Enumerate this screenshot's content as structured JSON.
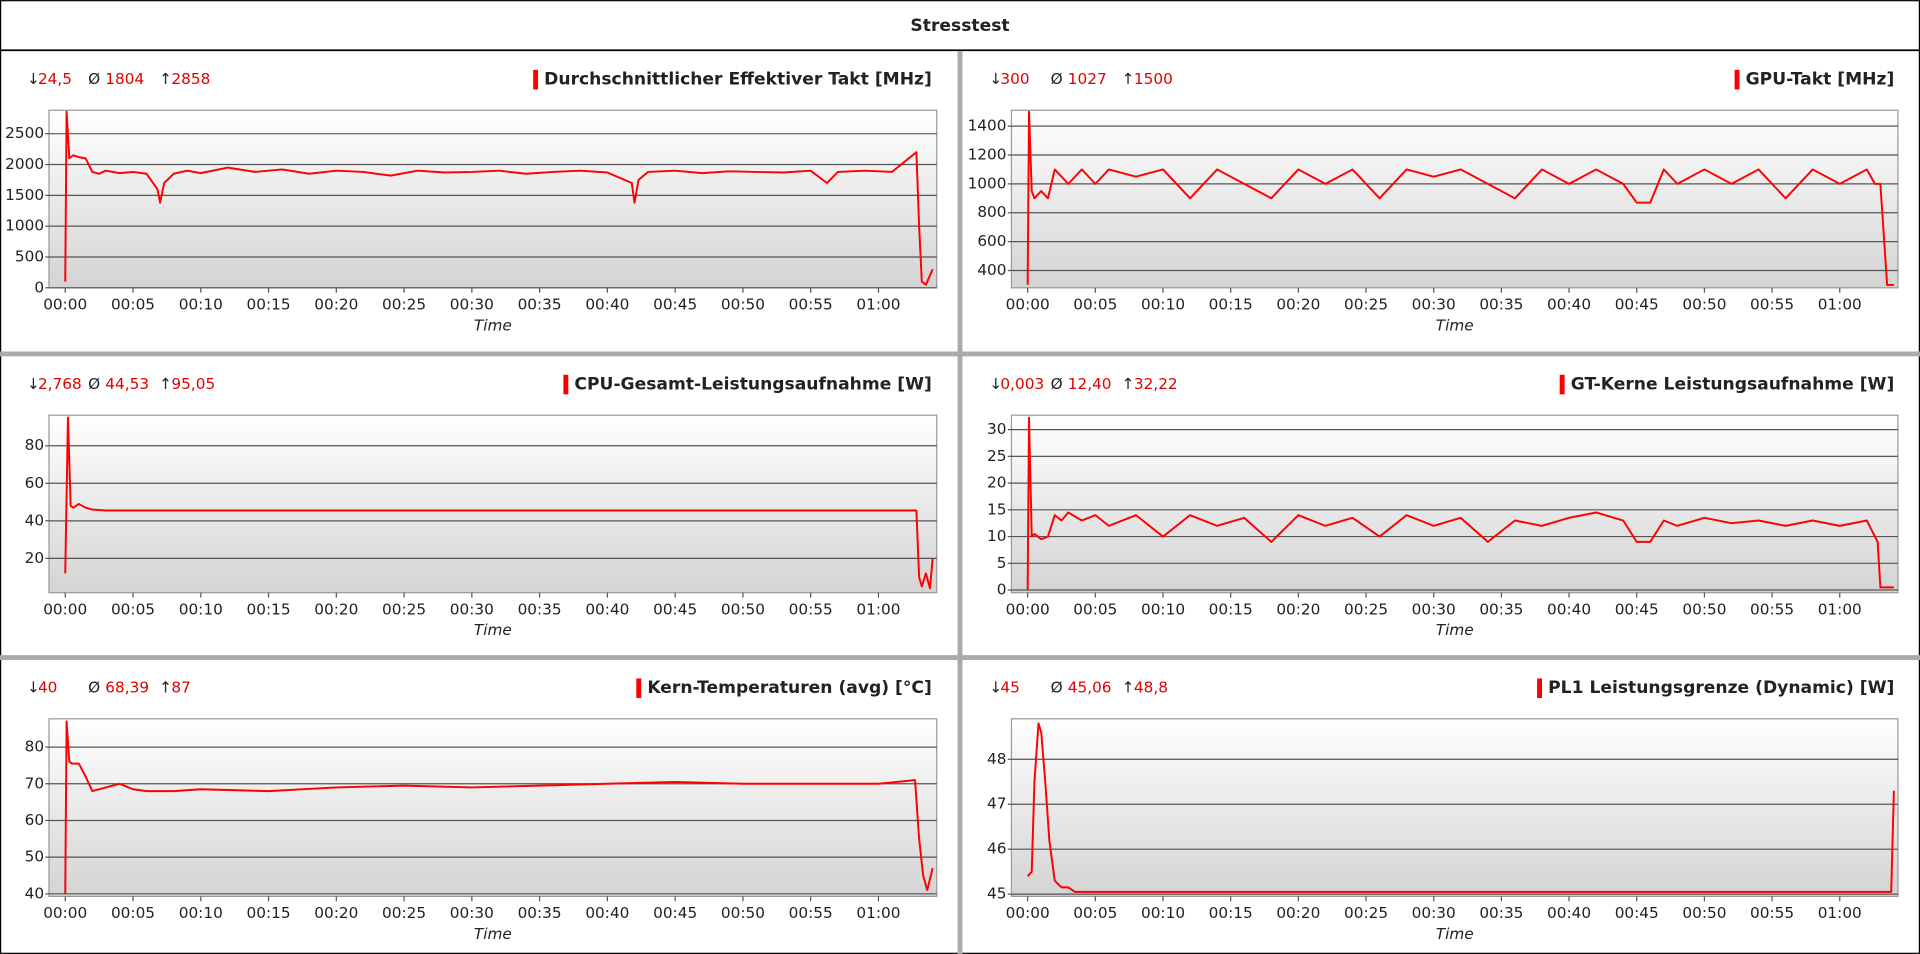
{
  "title": "Stresstest",
  "chart_data": [
    {
      "type": "line",
      "title": "Durchschnittlicher Effektiver Takt [MHz]",
      "xlabel": "Time",
      "stats": [
        {
          "symbol": "↓",
          "value": 24.5,
          "label": "24,5"
        },
        {
          "symbol": "Ø",
          "value": 1804,
          "label": "1804"
        },
        {
          "symbol": "↑",
          "value": 2858,
          "label": "2858"
        }
      ],
      "xlim": [
        -1.2,
        64.3
      ],
      "ylim": [
        0,
        2880
      ],
      "yticks": [
        0,
        500,
        1000,
        1500,
        2000,
        2500
      ],
      "xticks": [
        {
          "value": 0,
          "label": "00:00"
        },
        {
          "value": 5,
          "label": "00:05"
        },
        {
          "value": 10,
          "label": "00:10"
        },
        {
          "value": 15,
          "label": "00:15"
        },
        {
          "value": 20,
          "label": "00:20"
        },
        {
          "value": 25,
          "label": "00:25"
        },
        {
          "value": 30,
          "label": "00:30"
        },
        {
          "value": 35,
          "label": "00:35"
        },
        {
          "value": 40,
          "label": "00:40"
        },
        {
          "value": 45,
          "label": "00:45"
        },
        {
          "value": 50,
          "label": "00:50"
        },
        {
          "value": 55,
          "label": "00:55"
        },
        {
          "value": 60,
          "label": "01:00"
        }
      ],
      "grid": true,
      "x": [
        0,
        0.1,
        0.3,
        0.6,
        1,
        1.5,
        2,
        2.5,
        3,
        4,
        5,
        6,
        6.8,
        7,
        7.3,
        8,
        9,
        10,
        12,
        14,
        16,
        18,
        20,
        22,
        24,
        26,
        28,
        30,
        32,
        34,
        36,
        38,
        40,
        41.8,
        42,
        42.3,
        43,
        45,
        47,
        49,
        51,
        53,
        55,
        56.2,
        57,
        59,
        61,
        62.8,
        63,
        63.2,
        63.5,
        64
      ],
      "series": [
        {
          "color": "#ff0000",
          "values": [
            100,
            2858,
            2100,
            2150,
            2120,
            2100,
            1880,
            1850,
            1900,
            1860,
            1880,
            1850,
            1600,
            1380,
            1700,
            1850,
            1900,
            1860,
            1950,
            1880,
            1920,
            1850,
            1900,
            1880,
            1820,
            1900,
            1870,
            1880,
            1900,
            1850,
            1880,
            1900,
            1870,
            1700,
            1380,
            1750,
            1880,
            1900,
            1860,
            1890,
            1880,
            1870,
            1900,
            1700,
            1880,
            1900,
            1880,
            2200,
            1000,
            100,
            50,
            300
          ]
        }
      ]
    },
    {
      "type": "line",
      "title": "GPU-Takt [MHz]",
      "xlabel": "Time",
      "stats": [
        {
          "symbol": "↓",
          "value": 300,
          "label": "300"
        },
        {
          "symbol": "Ø",
          "value": 1027,
          "label": "1027"
        },
        {
          "symbol": "↑",
          "value": 1500,
          "label": "1500"
        }
      ],
      "xlim": [
        -1.2,
        64.3
      ],
      "ylim": [
        280,
        1510
      ],
      "yticks": [
        400,
        600,
        800,
        1000,
        1200,
        1400
      ],
      "xticks": [
        {
          "value": 0,
          "label": "00:00"
        },
        {
          "value": 5,
          "label": "00:05"
        },
        {
          "value": 10,
          "label": "00:10"
        },
        {
          "value": 15,
          "label": "00:15"
        },
        {
          "value": 20,
          "label": "00:20"
        },
        {
          "value": 25,
          "label": "00:25"
        },
        {
          "value": 30,
          "label": "00:30"
        },
        {
          "value": 35,
          "label": "00:35"
        },
        {
          "value": 40,
          "label": "00:40"
        },
        {
          "value": 45,
          "label": "00:45"
        },
        {
          "value": 50,
          "label": "00:50"
        },
        {
          "value": 55,
          "label": "00:55"
        },
        {
          "value": 60,
          "label": "01:00"
        }
      ],
      "grid": true,
      "x": [
        0,
        0.1,
        0.3,
        0.5,
        1,
        1.5,
        2,
        3,
        4,
        5,
        6,
        8,
        10,
        12,
        14,
        16,
        18,
        20,
        22,
        24,
        26,
        28,
        30,
        32,
        34,
        36,
        38,
        40,
        42,
        44,
        45,
        46,
        47,
        48,
        50,
        52,
        54,
        56,
        58,
        60,
        62,
        62.6,
        63,
        63.5,
        64
      ],
      "series": [
        {
          "color": "#ff0000",
          "values": [
            300,
            1500,
            950,
            900,
            950,
            900,
            1100,
            1000,
            1100,
            1000,
            1100,
            1050,
            1100,
            900,
            1100,
            1000,
            900,
            1100,
            1000,
            1100,
            900,
            1100,
            1050,
            1100,
            1000,
            900,
            1100,
            1000,
            1100,
            1000,
            870,
            870,
            1100,
            1000,
            1100,
            1000,
            1100,
            900,
            1100,
            1000,
            1100,
            1000,
            1000,
            300,
            300
          ]
        }
      ]
    },
    {
      "type": "line",
      "title": "CPU-Gesamt-Leistungsaufnahme [W]",
      "xlabel": "Time",
      "stats": [
        {
          "symbol": "↓",
          "value": 2.768,
          "label": "2,768"
        },
        {
          "symbol": "Ø",
          "value": 44.53,
          "label": "44,53"
        },
        {
          "symbol": "↑",
          "value": 95.05,
          "label": "95,05"
        }
      ],
      "xlim": [
        -1.2,
        64.3
      ],
      "ylim": [
        1.7,
        96.3
      ],
      "yticks": [
        20,
        40,
        60,
        80
      ],
      "xticks": [
        {
          "value": 0,
          "label": "00:00"
        },
        {
          "value": 5,
          "label": "00:05"
        },
        {
          "value": 10,
          "label": "00:10"
        },
        {
          "value": 15,
          "label": "00:15"
        },
        {
          "value": 20,
          "label": "00:20"
        },
        {
          "value": 25,
          "label": "00:25"
        },
        {
          "value": 30,
          "label": "00:30"
        },
        {
          "value": 35,
          "label": "00:35"
        },
        {
          "value": 40,
          "label": "00:40"
        },
        {
          "value": 45,
          "label": "00:45"
        },
        {
          "value": 50,
          "label": "00:50"
        },
        {
          "value": 55,
          "label": "00:55"
        },
        {
          "value": 60,
          "label": "01:00"
        }
      ],
      "grid": true,
      "x": [
        0,
        0.2,
        0.4,
        0.6,
        1,
        1.5,
        2,
        3,
        5,
        10,
        20,
        30,
        40,
        50,
        60,
        62.8,
        63,
        63.2,
        63.5,
        63.8,
        64
      ],
      "series": [
        {
          "color": "#ff0000",
          "values": [
            12,
            95.05,
            48,
            47,
            49,
            47,
            46,
            45.5,
            45.5,
            45.5,
            45.5,
            45.5,
            45.5,
            45.5,
            45.5,
            45.5,
            10,
            5,
            12,
            4,
            20
          ]
        }
      ]
    },
    {
      "type": "line",
      "title": "GT-Kerne Leistungsaufnahme [W]",
      "xlabel": "Time",
      "stats": [
        {
          "symbol": "↓",
          "value": 0.003,
          "label": "0,003"
        },
        {
          "symbol": "Ø",
          "value": 12.4,
          "label": "12,40"
        },
        {
          "symbol": "↑",
          "value": 32.22,
          "label": "32,22"
        }
      ],
      "xlim": [
        -1.2,
        64.3
      ],
      "ylim": [
        -0.5,
        32.7
      ],
      "yticks": [
        0,
        5,
        10,
        15,
        20,
        25,
        30
      ],
      "xticks": [
        {
          "value": 0,
          "label": "00:00"
        },
        {
          "value": 5,
          "label": "00:05"
        },
        {
          "value": 10,
          "label": "00:10"
        },
        {
          "value": 15,
          "label": "00:15"
        },
        {
          "value": 20,
          "label": "00:20"
        },
        {
          "value": 25,
          "label": "00:25"
        },
        {
          "value": 30,
          "label": "00:30"
        },
        {
          "value": 35,
          "label": "00:35"
        },
        {
          "value": 40,
          "label": "00:40"
        },
        {
          "value": 45,
          "label": "00:45"
        },
        {
          "value": 50,
          "label": "00:50"
        },
        {
          "value": 55,
          "label": "00:55"
        },
        {
          "value": 60,
          "label": "01:00"
        }
      ],
      "grid": true,
      "x": [
        0,
        0.1,
        0.3,
        0.5,
        1,
        1.5,
        2,
        2.5,
        3,
        4,
        5,
        6,
        8,
        10,
        12,
        14,
        16,
        18,
        20,
        22,
        24,
        26,
        28,
        30,
        32,
        34,
        36,
        38,
        40,
        42,
        44,
        45,
        46,
        47,
        48,
        50,
        52,
        54,
        56,
        58,
        60,
        62,
        62.8,
        63,
        63.5,
        64
      ],
      "series": [
        {
          "color": "#ff0000",
          "values": [
            0,
            32.22,
            10,
            10.5,
            9.5,
            10,
            14,
            13,
            14.5,
            13,
            14,
            12,
            14,
            10,
            14,
            12,
            13.5,
            9,
            14,
            12,
            13.5,
            10,
            14,
            12,
            13.5,
            9,
            13,
            12,
            13.5,
            14.5,
            13,
            9,
            9,
            13,
            12,
            13.5,
            12.5,
            13,
            12,
            13,
            12,
            13,
            9,
            0.5,
            0.5,
            0.5
          ]
        }
      ]
    },
    {
      "type": "line",
      "title": "Kern-Temperaturen (avg) [°C]",
      "xlabel": "Time",
      "stats": [
        {
          "symbol": "↓",
          "value": 40,
          "label": "40"
        },
        {
          "symbol": "Ø",
          "value": 68.39,
          "label": "68,39"
        },
        {
          "symbol": "↑",
          "value": 87,
          "label": "87"
        }
      ],
      "xlim": [
        -1.2,
        64.3
      ],
      "ylim": [
        39.3,
        87.7
      ],
      "yticks": [
        40,
        50,
        60,
        70,
        80
      ],
      "xticks": [
        {
          "value": 0,
          "label": "00:00"
        },
        {
          "value": 5,
          "label": "00:05"
        },
        {
          "value": 10,
          "label": "00:10"
        },
        {
          "value": 15,
          "label": "00:15"
        },
        {
          "value": 20,
          "label": "00:20"
        },
        {
          "value": 25,
          "label": "00:25"
        },
        {
          "value": 30,
          "label": "00:30"
        },
        {
          "value": 35,
          "label": "00:35"
        },
        {
          "value": 40,
          "label": "00:40"
        },
        {
          "value": 45,
          "label": "00:45"
        },
        {
          "value": 50,
          "label": "00:50"
        },
        {
          "value": 55,
          "label": "00:55"
        },
        {
          "value": 60,
          "label": "01:00"
        }
      ],
      "grid": true,
      "x": [
        0,
        0.1,
        0.3,
        0.5,
        1,
        1.5,
        2,
        3,
        4,
        5,
        6,
        8,
        10,
        15,
        20,
        25,
        30,
        35,
        40,
        45,
        50,
        55,
        60,
        62.7,
        63,
        63.3,
        63.6,
        64
      ],
      "series": [
        {
          "color": "#ff0000",
          "values": [
            40,
            87,
            76,
            75.5,
            75.5,
            72,
            68,
            69,
            70,
            68.5,
            68,
            68,
            68.5,
            68,
            69,
            69.5,
            69,
            69.5,
            70,
            70.5,
            70,
            70,
            70,
            71,
            55,
            45,
            41,
            47
          ]
        }
      ]
    },
    {
      "type": "line",
      "title": "PL1 Leistungsgrenze (Dynamic) [W]",
      "xlabel": "Time",
      "stats": [
        {
          "symbol": "↓",
          "value": 45,
          "label": "45"
        },
        {
          "symbol": "Ø",
          "value": 45.06,
          "label": "45,06"
        },
        {
          "symbol": "↑",
          "value": 48.8,
          "label": "48,8"
        }
      ],
      "xlim": [
        -1.2,
        64.3
      ],
      "ylim": [
        44.95,
        48.9
      ],
      "yticks": [
        45,
        46,
        47,
        48
      ],
      "xticks": [
        {
          "value": 0,
          "label": "00:00"
        },
        {
          "value": 5,
          "label": "00:05"
        },
        {
          "value": 10,
          "label": "00:10"
        },
        {
          "value": 15,
          "label": "00:15"
        },
        {
          "value": 20,
          "label": "00:20"
        },
        {
          "value": 25,
          "label": "00:25"
        },
        {
          "value": 30,
          "label": "00:30"
        },
        {
          "value": 35,
          "label": "00:35"
        },
        {
          "value": 40,
          "label": "00:40"
        },
        {
          "value": 45,
          "label": "00:45"
        },
        {
          "value": 50,
          "label": "00:50"
        },
        {
          "value": 55,
          "label": "00:55"
        },
        {
          "value": 60,
          "label": "01:00"
        }
      ],
      "grid": true,
      "x": [
        0,
        0.3,
        0.5,
        0.8,
        1,
        1.3,
        1.6,
        2,
        2.5,
        3,
        3.5,
        5,
        20,
        40,
        60,
        63.8,
        64
      ],
      "series": [
        {
          "color": "#ff0000",
          "values": [
            45.4,
            45.5,
            47.5,
            48.8,
            48.6,
            47.5,
            46.2,
            45.3,
            45.15,
            45.15,
            45.05,
            45.05,
            45.05,
            45.05,
            45.05,
            45.05,
            47.3
          ]
        }
      ]
    }
  ]
}
